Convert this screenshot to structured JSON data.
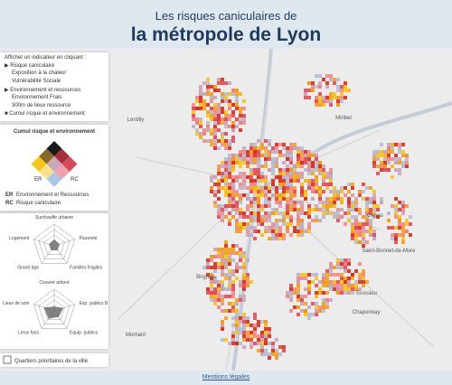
{
  "header": {
    "title_line1": "Les risques caniculaires de",
    "title_line2": "la métropole de Lyon"
  },
  "menu": {
    "prompt": "Afficher un indicateur en cliquant :",
    "items": [
      "Risque caniculaire",
      "Exposition à la chaleur",
      "Vulnérabilité Sociale",
      "Environnement et ressources",
      "Environnement Frais",
      "300m de lieux ressource",
      "Cumul risque et environnement"
    ]
  },
  "legend": {
    "title": "Cumul risque et environnement",
    "axis_er": "ER",
    "axis_rc": "RC",
    "items": [
      {
        "code": "ER",
        "label": "Environnement et Ressources"
      },
      {
        "code": "RC",
        "label": "Risque caniculaire"
      }
    ]
  },
  "radar1": {
    "labels": [
      "Surchauffe urbaine",
      "Pauvreté",
      "Familles fragiles",
      "Grand âge",
      "Logement"
    ]
  },
  "radar2": {
    "labels": [
      "Couvert arboré",
      "Esp. publics B...",
      "Equip. publics",
      "Lieux frais",
      "Lieux de soin"
    ]
  },
  "checkbox": {
    "label": "Quartiers prioritaires de la ville"
  },
  "map": {
    "places": [
      "Miribel",
      "Lentilly",
      "Genas",
      "Brignais",
      "Saint-Bonnet-de-Mure",
      "Chaponnay",
      "Mornant",
      "Toussieu"
    ]
  },
  "footer": {
    "link": "Mentions légales"
  }
}
